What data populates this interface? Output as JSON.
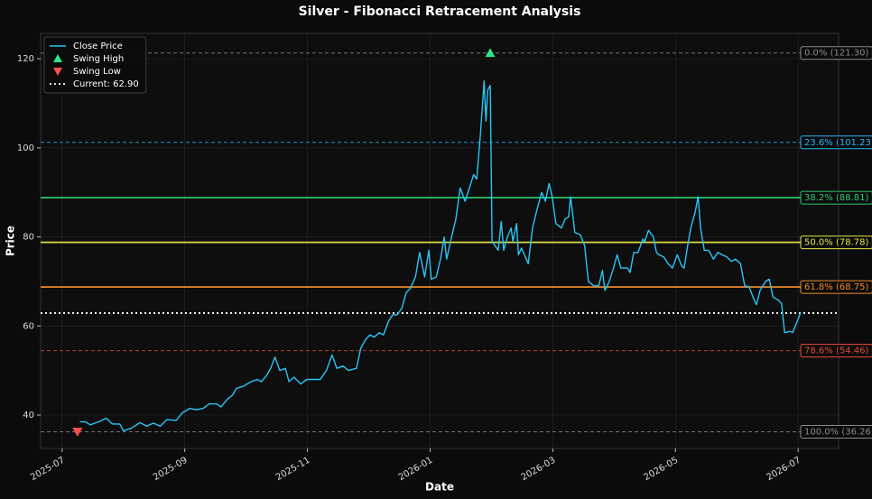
{
  "chart_data": {
    "type": "line",
    "title": "Silver - Fibonacci Retracement Analysis",
    "x_label": "Date",
    "y_label": "Price",
    "xlim": [
      -0.35,
      12.66
    ],
    "ylim": [
      32.5,
      125.7
    ],
    "xticks": [
      {
        "value": 0,
        "label": "2025-07"
      },
      {
        "value": 2,
        "label": "2025-09"
      },
      {
        "value": 4,
        "label": "2025-11"
      },
      {
        "value": 6,
        "label": "2026-01"
      },
      {
        "value": 8,
        "label": "2026-03"
      },
      {
        "value": 10,
        "label": "2026-05"
      },
      {
        "value": 12,
        "label": "2026-07"
      }
    ],
    "yticks": [
      40,
      60,
      80,
      100,
      120
    ],
    "grid": true,
    "legend": "upper left",
    "series": [
      {
        "name": "Close Price",
        "color": "#29c5f6",
        "x": [
          0.29,
          0.38,
          0.46,
          0.6,
          0.72,
          0.82,
          0.94,
          1.0,
          1.12,
          1.27,
          1.38,
          1.49,
          1.6,
          1.71,
          1.86,
          1.96,
          2.08,
          2.19,
          2.3,
          2.4,
          2.52,
          2.59,
          2.69,
          2.78,
          2.84,
          2.96,
          3.08,
          3.18,
          3.25,
          3.34,
          3.4,
          3.47,
          3.55,
          3.64,
          3.7,
          3.78,
          3.89,
          3.99,
          4.11,
          4.21,
          4.31,
          4.4,
          4.48,
          4.58,
          4.67,
          4.8,
          4.87,
          4.95,
          5.02,
          5.09,
          5.17,
          5.24,
          5.32,
          5.39,
          5.46,
          5.54,
          5.61,
          5.68,
          5.76,
          5.83,
          5.91,
          5.98,
          6.02,
          6.1,
          6.17,
          6.23,
          6.27,
          6.35,
          6.42,
          6.49,
          6.57,
          6.64,
          6.71,
          6.76,
          6.82,
          6.88,
          6.91,
          6.94,
          6.98,
          7.01,
          7.11,
          7.16,
          7.2,
          7.26,
          7.32,
          7.35,
          7.41,
          7.44,
          7.49,
          7.6,
          7.67,
          7.74,
          7.82,
          7.88,
          7.94,
          7.99,
          8.05,
          8.14,
          8.2,
          8.26,
          8.29,
          8.36,
          8.45,
          8.52,
          8.58,
          8.67,
          8.75,
          8.81,
          8.85,
          8.92,
          8.99,
          9.05,
          9.11,
          9.22,
          9.26,
          9.32,
          9.39,
          9.47,
          9.5,
          9.56,
          9.64,
          9.69,
          9.73,
          9.81,
          9.88,
          9.95,
          10.03,
          10.1,
          10.14,
          10.2,
          10.25,
          10.32,
          10.37,
          10.41,
          10.47,
          10.54,
          10.62,
          10.69,
          10.76,
          10.84,
          10.91,
          10.98,
          11.06,
          11.13,
          11.2,
          11.28,
          11.32,
          11.38,
          11.47,
          11.53,
          11.59,
          11.68,
          11.73,
          11.78,
          11.87,
          11.91,
          11.97,
          12.04
        ],
        "values": [
          38.5,
          38.5,
          37.8,
          38.5,
          39.3,
          38,
          38,
          36.5,
          37,
          38.3,
          37.5,
          38.2,
          37.5,
          39,
          38.8,
          40.5,
          41.5,
          41.2,
          41.5,
          42.5,
          42.5,
          41.8,
          43.5,
          44.5,
          46,
          46.5,
          47.5,
          48,
          47.5,
          49,
          50.5,
          53,
          50,
          50.5,
          47.5,
          48.5,
          47,
          48,
          48,
          48,
          50,
          53.5,
          50.5,
          51,
          50,
          50.5,
          55,
          57,
          58,
          57.5,
          58.5,
          58,
          61,
          62.5,
          62.5,
          64,
          67.5,
          68.5,
          71,
          76.5,
          71,
          77,
          70.5,
          71,
          75,
          80,
          75,
          80,
          84,
          91,
          88,
          91,
          94,
          93,
          103,
          115,
          106,
          113,
          114,
          79,
          77,
          83.5,
          77,
          80,
          82,
          79,
          83,
          76,
          77.5,
          74,
          82,
          86,
          90,
          88,
          92,
          89,
          83,
          82,
          84,
          84.5,
          89,
          81,
          80.5,
          78,
          70,
          69,
          69,
          72.5,
          68,
          70,
          73,
          76,
          73,
          73,
          72,
          76.5,
          76.5,
          79.5,
          79,
          81.5,
          80,
          76.5,
          76,
          75.5,
          74,
          73,
          76,
          73.5,
          73,
          78,
          82,
          85.5,
          89,
          82,
          77,
          77,
          75,
          76.5,
          76,
          75.5,
          74.5,
          75,
          74,
          69,
          68.8,
          66,
          64.8,
          68,
          70,
          70.5,
          66.5,
          65.8,
          65,
          58.5,
          58.8,
          58.5,
          60.5,
          63
        ]
      }
    ],
    "markers": [
      {
        "name": "Swing High",
        "x": 6.98,
        "y": 121.3,
        "color": "#2ee68a",
        "shape": "up"
      },
      {
        "name": "Swing Low",
        "x": 0.25,
        "y": 36.26,
        "color": "#ff4d4d",
        "shape": "down"
      }
    ],
    "current": {
      "name": "Current: 62.90",
      "value": 62.9,
      "color": "#ffffff"
    },
    "fib_levels": [
      {
        "label": "0.0% (121.30)",
        "value": 121.3,
        "color": "#8a8a8a",
        "dashed": true
      },
      {
        "label": "23.6% (101.23)",
        "value": 101.23,
        "color": "#29b6f6",
        "dashed": true
      },
      {
        "label": "38.2% (88.81)",
        "value": 88.81,
        "color": "#2ecc71",
        "dashed": false
      },
      {
        "label": "50.0% (78.78)",
        "value": 78.78,
        "color": "#e6e64a",
        "dashed": false
      },
      {
        "label": "61.8% (68.75)",
        "value": 68.75,
        "color": "#f08c2a",
        "dashed": false
      },
      {
        "label": "78.6% (54.46)",
        "value": 54.46,
        "color": "#e74c3c",
        "dashed": true
      },
      {
        "label": "100.0% (36.26)",
        "value": 36.26,
        "color": "#8a8a8a",
        "dashed": true
      }
    ]
  }
}
